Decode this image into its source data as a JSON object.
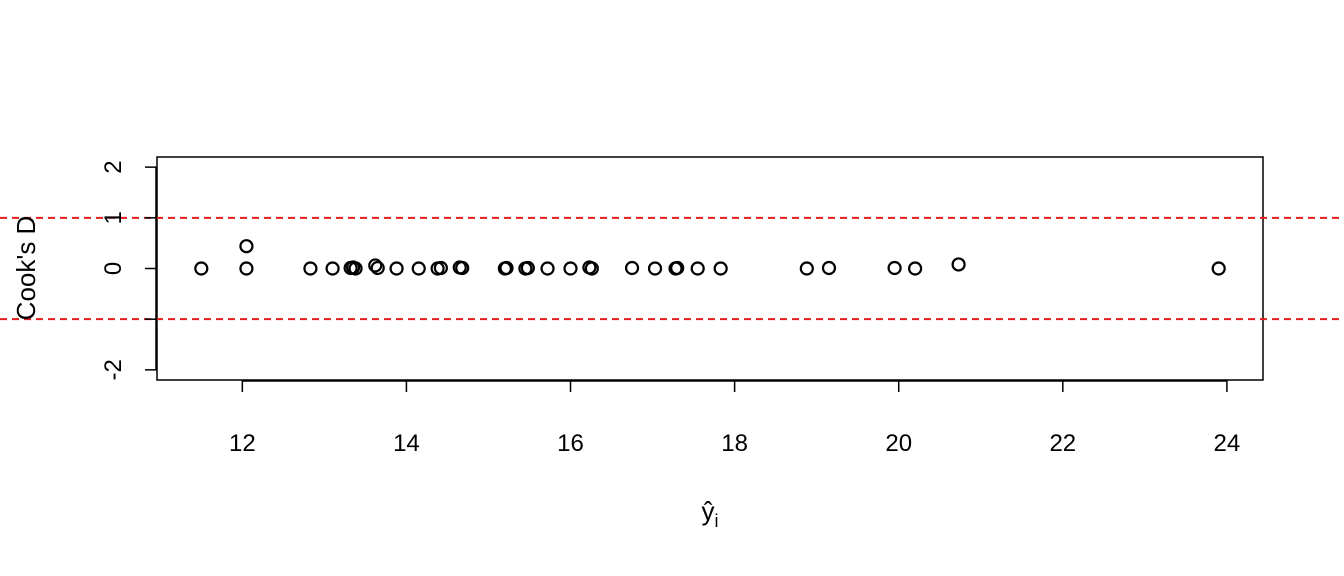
{
  "chart_data": {
    "type": "scatter",
    "xlabel": "ŷ",
    "xlabel_sub": "i",
    "ylabel": "Cook's D",
    "xlim": [
      10.96,
      24.44
    ],
    "ylim": [
      -2.2,
      2.2
    ],
    "xticks": [
      12,
      14,
      16,
      18,
      20,
      22,
      24
    ],
    "yticks": [
      -2,
      -1,
      0,
      1,
      2
    ],
    "ytick_labels": [
      "-2",
      "",
      "0",
      "1",
      "2"
    ],
    "reference_lines": [
      1,
      -1
    ],
    "reference_line_color": "#e41a1c",
    "grid": false,
    "x": [
      11.5,
      12.05,
      12.05,
      12.83,
      13.1,
      13.32,
      13.35,
      13.38,
      13.62,
      13.65,
      13.88,
      14.15,
      14.38,
      14.42,
      14.65,
      14.68,
      15.2,
      15.22,
      15.45,
      15.48,
      15.72,
      16.0,
      16.23,
      16.26,
      16.75,
      17.03,
      17.28,
      17.3,
      17.55,
      17.83,
      18.88,
      19.15,
      19.95,
      20.2,
      20.73,
      23.9
    ],
    "y": [
      0.0,
      0.0,
      0.44,
      0.0,
      0.0,
      0.01,
      0.02,
      0.0,
      0.06,
      0.01,
      0.0,
      0.0,
      0.0,
      0.01,
      0.02,
      0.01,
      0.0,
      0.01,
      0.0,
      0.01,
      0.0,
      0.0,
      0.02,
      0.0,
      0.01,
      0.0,
      0.0,
      0.01,
      0.0,
      0.0,
      0.0,
      0.01,
      0.01,
      0.0,
      0.08,
      0.0
    ]
  }
}
